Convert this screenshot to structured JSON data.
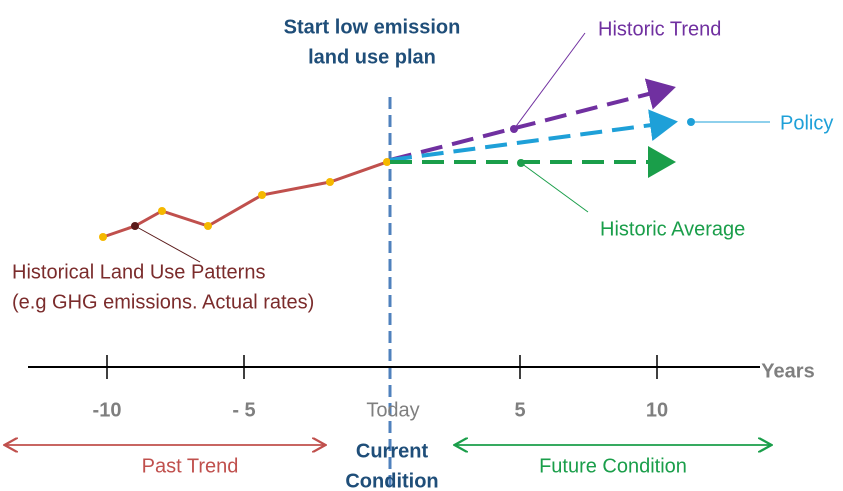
{
  "annotation_top": [
    "Start low emission",
    "land use plan"
  ],
  "lines": {
    "historic_trend": "Historic Trend",
    "policy": "Policy",
    "historic_average": "Historic Average"
  },
  "historical": [
    "Historical Land Use Patterns",
    "(e.g GHG emissions. Actual rates)"
  ],
  "axis": {
    "label": "Years",
    "ticks": [
      "-10",
      "- 5",
      "Today",
      "5",
      "10"
    ]
  },
  "periods": {
    "past": "Past Trend",
    "current": [
      "Current",
      "Condition"
    ],
    "future": "Future Condition"
  }
}
